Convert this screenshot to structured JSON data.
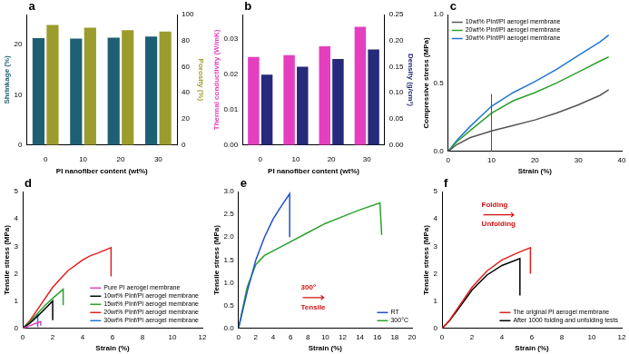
{
  "chart_data": [
    {
      "panel": "a",
      "type": "bar",
      "categories": [
        "0",
        "10",
        "20",
        "30"
      ],
      "x_label": "PI nanofiber content (wt%)",
      "y_label": "Shrinkage (%)",
      "y2_label": "Porosity (%)",
      "series": [
        {
          "name": "Shrinkage (%)",
          "color": "#1f5f73",
          "values": [
            21.3,
            21.2,
            21.4,
            21.6
          ]
        },
        {
          "name": "Porosity (%)",
          "color": "#9c9c2e",
          "values": [
            92,
            90,
            88,
            87
          ],
          "axis": "y2"
        }
      ],
      "ylim": [
        0,
        26
      ],
      "yticks": [
        0,
        10,
        20
      ],
      "y2lim": [
        0,
        100
      ],
      "y2ticks": [
        0,
        20,
        40,
        60,
        80,
        100
      ],
      "grid": false
    },
    {
      "panel": "b",
      "type": "bar",
      "categories": [
        "0",
        "10",
        "20",
        "30"
      ],
      "x_label": "PI nanofiber content (wt%)",
      "y_label": "Thermal conductivity (W/mK)",
      "y2_label": "Density (g/cm³)",
      "series": [
        {
          "name": "Thermal conductivity (W/mK)",
          "color": "#e53fbf",
          "values": [
            0.025,
            0.0255,
            0.028,
            0.0335
          ]
        },
        {
          "name": "Density (g/cm³)",
          "color": "#252a7a",
          "values": [
            0.135,
            0.15,
            0.165,
            0.183
          ],
          "axis": "y2"
        }
      ],
      "ylim": [
        0,
        0.037
      ],
      "yticks": [
        {
          "value": 0,
          "label": "0.00"
        },
        0.01,
        0.02,
        0.03
      ],
      "y2lim": [
        0,
        0.25
      ],
      "y2ticks": [
        {
          "value": 0,
          "label": "0.00"
        },
        0.05,
        {
          "value": 0.1,
          "label": "0.10"
        },
        0.15,
        {
          "value": 0.2,
          "label": "0.20"
        },
        0.25
      ],
      "grid": false
    },
    {
      "panel": "c",
      "type": "line",
      "x_label": "Strain (%)",
      "y_label": "Compressive stress (MPa)",
      "series": [
        {
          "name": "10wt% PInf/PI aerogel membrane",
          "color": "#555555",
          "x": [
            0,
            2,
            5,
            10,
            15,
            20,
            25,
            30,
            35,
            37
          ],
          "values": [
            0,
            0.05,
            0.1,
            0.15,
            0.19,
            0.23,
            0.28,
            0.34,
            0.41,
            0.45
          ]
        },
        {
          "name": "20wt% PInf/PI aerogel membrane",
          "color": "#2ca02c",
          "x": [
            0,
            2,
            5,
            10,
            15,
            20,
            25,
            30,
            35,
            37
          ],
          "values": [
            0,
            0.07,
            0.15,
            0.28,
            0.37,
            0.43,
            0.5,
            0.58,
            0.66,
            0.69
          ]
        },
        {
          "name": "30wt% PInf/PI aerogel membrane",
          "color": "#1f77d4",
          "x": [
            0,
            2,
            5,
            10,
            15,
            20,
            25,
            30,
            35,
            37
          ],
          "values": [
            0,
            0.08,
            0.18,
            0.33,
            0.43,
            0.51,
            0.6,
            0.7,
            0.8,
            0.85
          ]
        }
      ],
      "reference_line": {
        "x": 10,
        "y": [
          0,
          0.42
        ],
        "color": "#ff0000"
      },
      "xlim": [
        0,
        40
      ],
      "xticks": [
        0,
        10,
        20,
        30,
        40
      ],
      "ylim": [
        0,
        1
      ],
      "yticks": [
        {
          "value": 0,
          "label": "0.0"
        },
        0.5,
        {
          "value": 1,
          "label": "1.0"
        }
      ],
      "legend": "upper left",
      "grid": false
    },
    {
      "panel": "d",
      "type": "line",
      "x_label": "Strain (%)",
      "y_label": "Tensile stress (MPa)",
      "series": [
        {
          "name": "Pure PI aerogel membrane",
          "color": "#e040c0",
          "x": [
            0,
            0.4,
            0.8,
            1.2,
            1.2
          ],
          "values": [
            0,
            0.08,
            0.17,
            0.25,
            0.1
          ]
        },
        {
          "name": "10wt% PInf/PI aerogel membrane",
          "color": "#000000",
          "x": [
            0,
            0.5,
            1,
            1.5,
            2,
            2
          ],
          "values": [
            0,
            0.2,
            0.45,
            0.72,
            1.0,
            0.3
          ]
        },
        {
          "name": "15wt% PInf/PI aerogel membrane",
          "color": "#2ca02c",
          "x": [
            0,
            0.5,
            1,
            1.5,
            2,
            2.7,
            2.7
          ],
          "values": [
            0,
            0.25,
            0.55,
            0.85,
            1.1,
            1.43,
            0.85
          ]
        },
        {
          "name": "20wt% PInf/PI aerogel membrane",
          "color": "#e02020",
          "x": [
            0,
            0.5,
            1,
            2,
            3,
            4,
            4.5,
            5,
            5.9,
            5.9
          ],
          "values": [
            0,
            0.3,
            0.7,
            1.5,
            2.1,
            2.5,
            2.65,
            2.75,
            2.95,
            1.9
          ]
        },
        {
          "name": "30wt% PInf/PI aerogel membrane",
          "color": "#1f77d4",
          "x": [
            0,
            0.5,
            1,
            1
          ],
          "values": [
            0,
            0.25,
            0.5,
            0.05
          ]
        }
      ],
      "xlim": [
        0,
        12
      ],
      "xticks": [
        0,
        2,
        4,
        6,
        8,
        10,
        12
      ],
      "ylim": [
        0,
        5
      ],
      "yticks": [
        0,
        1,
        2,
        3,
        4,
        5
      ],
      "legend": "lower right",
      "grid": false
    },
    {
      "panel": "e",
      "type": "line",
      "x_label": "Strain (%)",
      "y_label": "Tensile stress (MPa)",
      "series": [
        {
          "name": "RT",
          "color": "#1f4fd4",
          "x": [
            0,
            1,
            2,
            3,
            4,
            5,
            5.9,
            5.9
          ],
          "values": [
            0,
            0.8,
            1.5,
            2.0,
            2.4,
            2.7,
            2.95,
            2.0
          ]
        },
        {
          "name": "300°C",
          "color": "#2ca02c",
          "x": [
            0,
            1,
            2,
            3,
            5,
            8,
            10,
            12,
            14,
            16.3,
            16.5
          ],
          "values": [
            0,
            0.9,
            1.4,
            1.6,
            1.8,
            2.1,
            2.3,
            2.45,
            2.6,
            2.75,
            2.05
          ]
        }
      ],
      "annotations": [
        "300°",
        "Tensile"
      ],
      "xlim": [
        0,
        20
      ],
      "xticks": [
        0,
        2,
        4,
        6,
        8,
        10,
        12,
        14,
        16,
        18,
        20
      ],
      "ylim": [
        0,
        3
      ],
      "yticks": [
        {
          "value": 0,
          "label": "0.0"
        },
        0.5,
        {
          "value": 1,
          "label": "1.0"
        },
        1.5,
        {
          "value": 2,
          "label": "2.0"
        },
        2.5,
        {
          "value": 3,
          "label": "3.0"
        }
      ],
      "legend": "lower right",
      "grid": false
    },
    {
      "panel": "f",
      "type": "line",
      "x_label": "Strain (%)",
      "y_label": "Tensile stress (MPa)",
      "series": [
        {
          "name": "The original PI aerogel membrane",
          "color": "#e02020",
          "x": [
            0,
            0.5,
            1,
            2,
            3,
            4,
            5,
            5.9,
            5.9
          ],
          "values": [
            0,
            0.3,
            0.7,
            1.5,
            2.1,
            2.5,
            2.75,
            2.95,
            2.0
          ]
        },
        {
          "name": "After 1000 folding and unfolding tests",
          "color": "#000000",
          "x": [
            0,
            0.5,
            1,
            2,
            3,
            4,
            5.2,
            5.2
          ],
          "values": [
            0,
            0.28,
            0.65,
            1.4,
            1.95,
            2.3,
            2.55,
            1.2
          ]
        }
      ],
      "annotations": [
        "Folding",
        "Unfolding"
      ],
      "xlim": [
        0,
        12
      ],
      "xticks": [
        0,
        2,
        4,
        6,
        8,
        10,
        12
      ],
      "ylim": [
        0,
        5
      ],
      "yticks": [
        0,
        1,
        2,
        3,
        4,
        5
      ],
      "legend": "lower right",
      "grid": false
    }
  ]
}
